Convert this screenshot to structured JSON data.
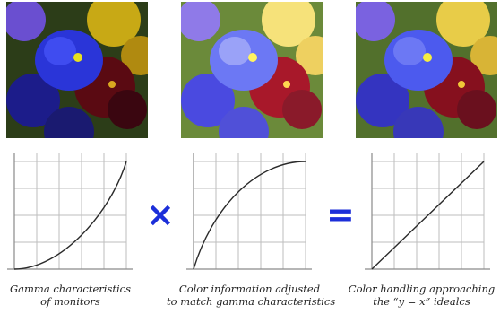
{
  "panels": [
    {
      "caption_line1": "Gamma characteristics",
      "caption_line2": "of monitors",
      "curve": "gamma",
      "photo_tone": "dark"
    },
    {
      "caption_line1": "Color information adjusted",
      "caption_line2": "to match gamma characteristics",
      "curve": "inverse-gamma",
      "photo_tone": "bright"
    },
    {
      "caption_line1": "Color handling approaching",
      "caption_line2": "the “y = x” idealcs",
      "curve": "linear",
      "photo_tone": "balanced"
    }
  ],
  "operators": {
    "multiply": "×",
    "equals": "="
  },
  "colors": {
    "operator": "#1c2fd9",
    "grid": "#bdbdbd",
    "axis": "#8a8a8a",
    "curve": "#2a2a2a"
  }
}
